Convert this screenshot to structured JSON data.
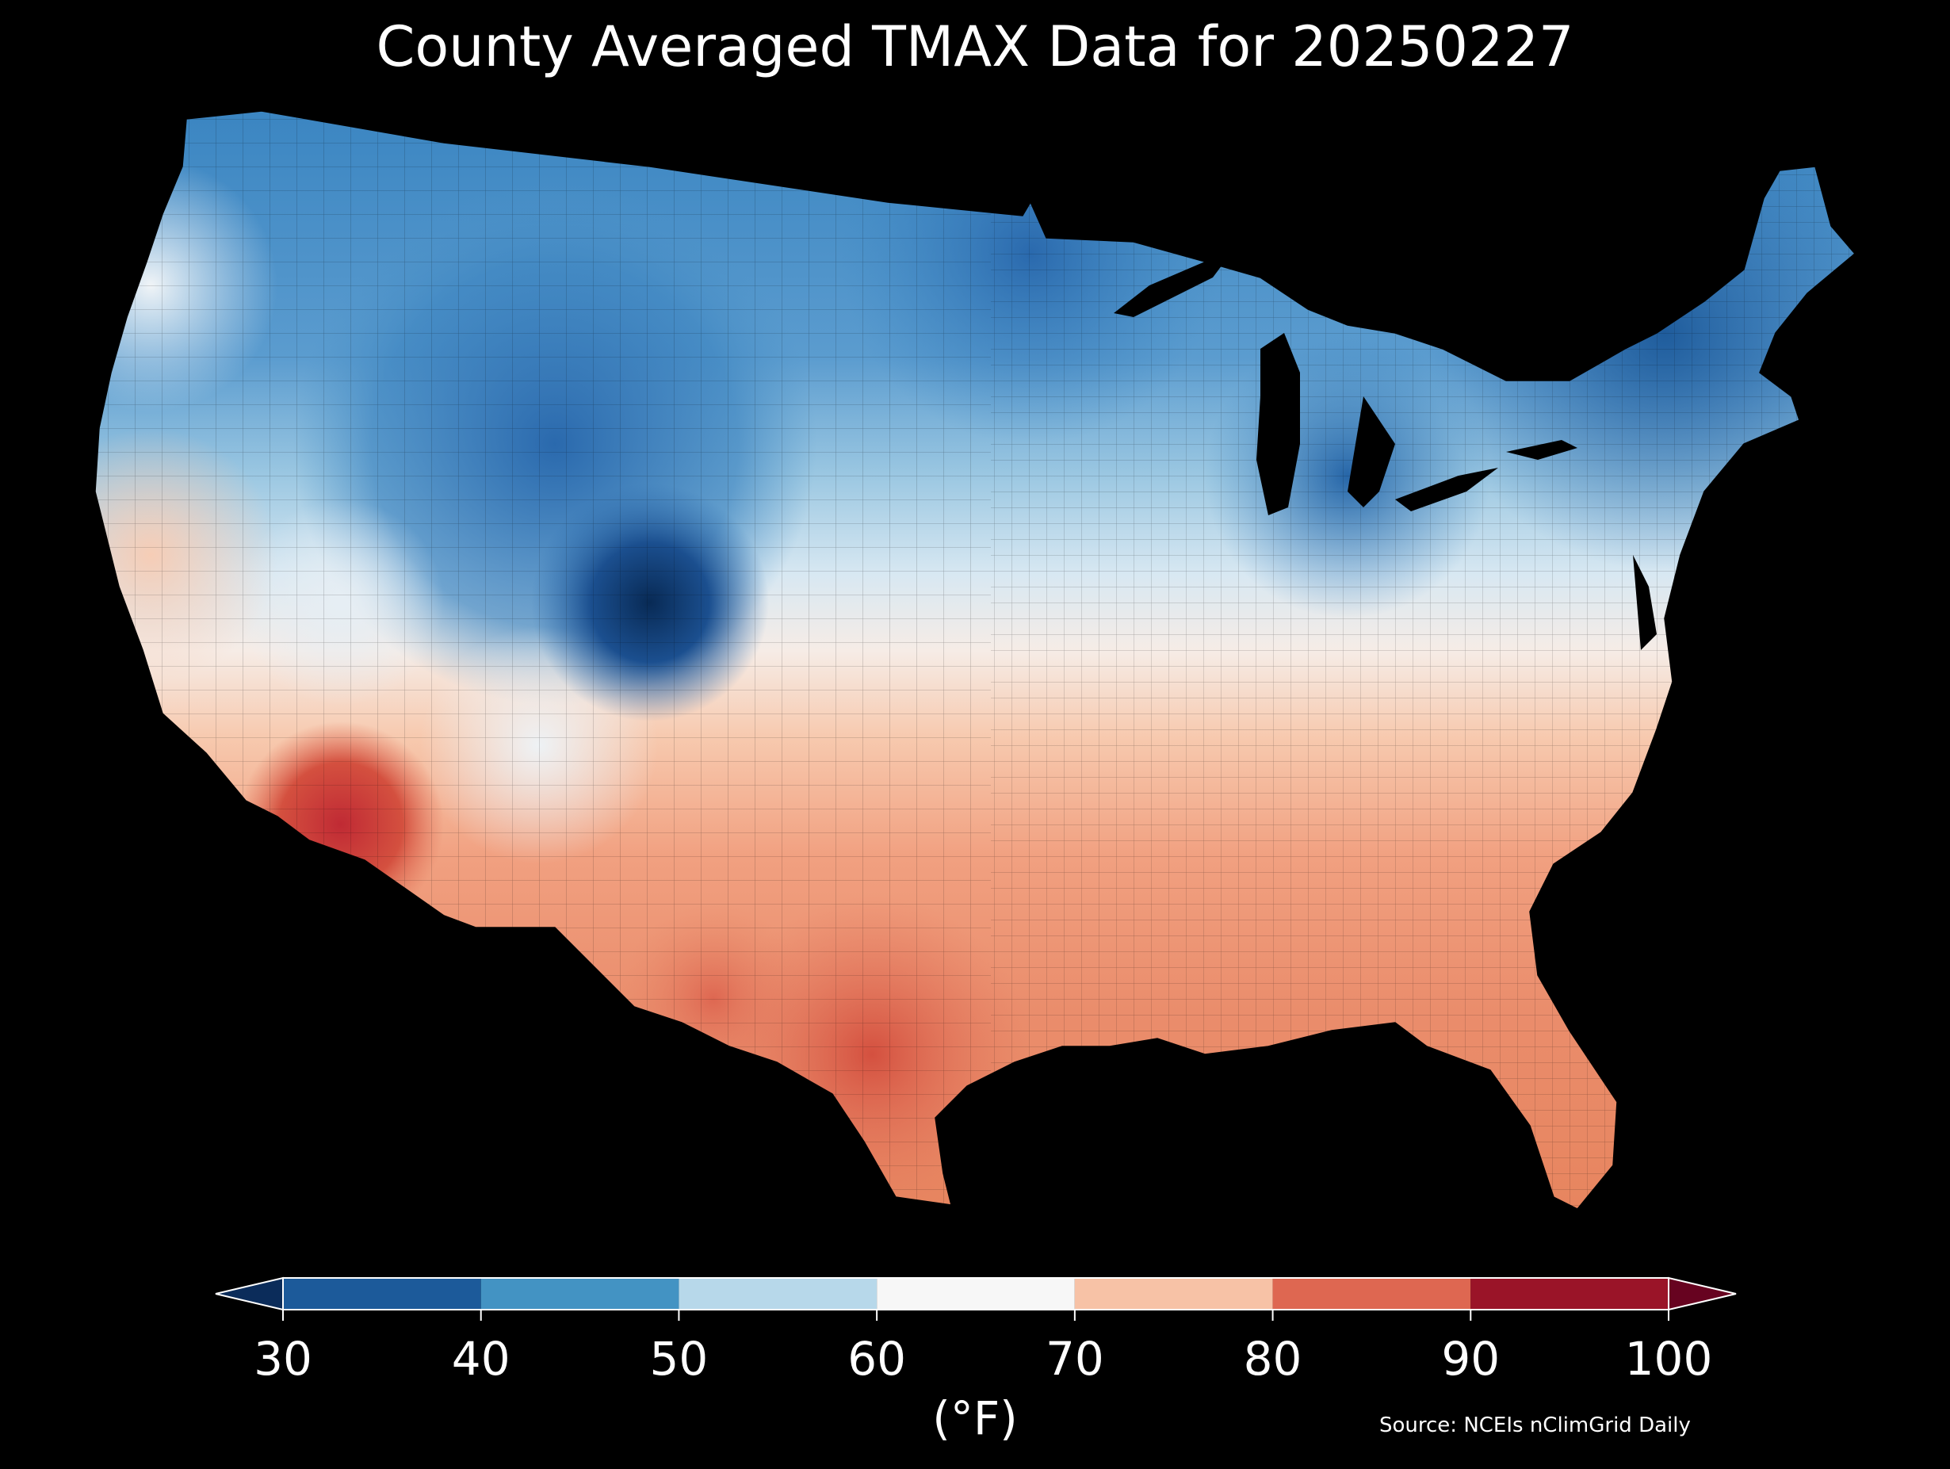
{
  "title": "County Averaged TMAX Data for 20250227",
  "colorbar": {
    "ticks": [
      "30",
      "40",
      "50",
      "60",
      "70",
      "80",
      "90",
      "100"
    ],
    "units": "(°F)",
    "bins": [
      {
        "from": 30,
        "to": 40,
        "color": "#1c5a9a"
      },
      {
        "from": 40,
        "to": 50,
        "color": "#4393c3"
      },
      {
        "from": 50,
        "to": 60,
        "color": "#b7d8ea"
      },
      {
        "from": 60,
        "to": 70,
        "color": "#f7f7f7"
      },
      {
        "from": 70,
        "to": 80,
        "color": "#f7c2a6"
      },
      {
        "from": 80,
        "to": 90,
        "color": "#de6751"
      },
      {
        "from": 90,
        "to": 100,
        "color": "#9a1428"
      }
    ],
    "under_color": "#0b2c5a",
    "over_color": "#670320"
  },
  "source": "Source: NCEIs nClimGrid Daily",
  "map": {
    "region": "Contiguous United States counties",
    "colors": {
      "dark_blue": "#0b2c5a",
      "blue": "#2f6fb0",
      "mid_blue": "#6aa8d6",
      "light_blue": "#b7d8ea",
      "white": "#f2f2f2",
      "light_orange": "#f7c2a6",
      "orange": "#ef9373",
      "red_orange": "#d85a48",
      "red": "#c02a34"
    }
  }
}
